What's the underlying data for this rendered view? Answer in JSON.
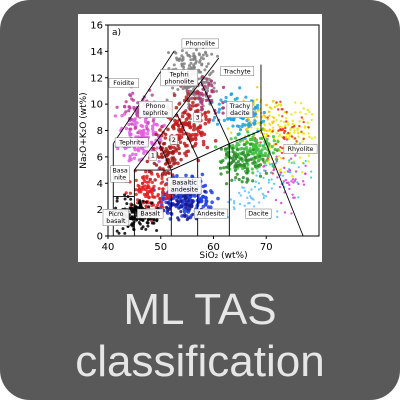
{
  "tile": {
    "caption_line1": "ML TAS",
    "caption_line2": "classification"
  },
  "colors": {
    "tile_bg": "#595959",
    "caption": "#e6e6e6"
  },
  "chart_data": {
    "type": "scatter",
    "panel_label": "a)",
    "xlabel": "SiO₂ (wt%)",
    "ylabel": "Na₂O+K₂O (wt%)",
    "xlim": [
      40,
      80
    ],
    "ylim": [
      0,
      16
    ],
    "x_ticks": [
      "40",
      "50",
      "60",
      "70"
    ],
    "y_ticks": [
      "0",
      "2",
      "4",
      "6",
      "8",
      "10",
      "12",
      "14",
      "16"
    ],
    "field_labels": [
      {
        "text": "Phonolite",
        "x": 57.5,
        "y": 14.6
      },
      {
        "text": "Tephri\nphonolite",
        "x": 53.5,
        "y": 12.0
      },
      {
        "text": "Trachyte",
        "x": 64.5,
        "y": 12.5
      },
      {
        "text": "Foidite",
        "x": 43.0,
        "y": 11.6
      },
      {
        "text": "Phono\ntephrite",
        "x": 49.0,
        "y": 9.6
      },
      {
        "text": "3",
        "x": 57.0,
        "y": 9.0
      },
      {
        "text": "Trachy\ndacite",
        "x": 65.0,
        "y": 9.6
      },
      {
        "text": "2",
        "x": 52.5,
        "y": 7.3
      },
      {
        "text": "Tephrite",
        "x": 44.5,
        "y": 7.1
      },
      {
        "text": "1",
        "x": 48.5,
        "y": 6.1
      },
      {
        "text": "Rhyolite",
        "x": 76.5,
        "y": 6.6
      },
      {
        "text": "Basa\nnite",
        "x": 42.3,
        "y": 4.7
      },
      {
        "text": "Basaltic\nandesite",
        "x": 54.5,
        "y": 3.8
      },
      {
        "text": "Basalt",
        "x": 48.0,
        "y": 1.7
      },
      {
        "text": "Andesite",
        "x": 59.5,
        "y": 1.7
      },
      {
        "text": "Dacite",
        "x": 68.5,
        "y": 1.7
      },
      {
        "text": "Picro\nbasalt",
        "x": 41.5,
        "y": 1.4
      }
    ]
  }
}
